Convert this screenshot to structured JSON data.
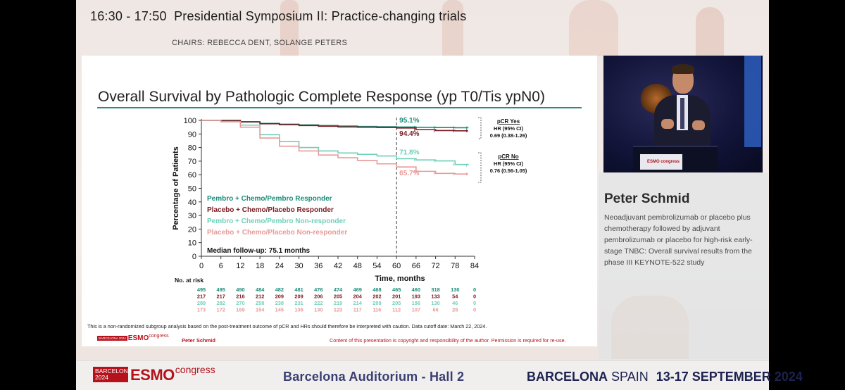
{
  "session": {
    "time_title": "16:30 - 17:50  Presidential Symposium II: Practice-changing trials",
    "chairs": "CHAIRS: REBECCA DENT, SOLANGE PETERS"
  },
  "slide": {
    "title": "Overall Survival by Pathologic Complete Response (yp T0/Tis ypN0)",
    "legend": [
      {
        "label": "Pembro + Chemo/Pembro Responder",
        "color": "#1a8c78"
      },
      {
        "label": "Placebo + Chemo/Placebo Responder",
        "color": "#7a1c22"
      },
      {
        "label": "Pembro + Chemo/Pembro Non-responder",
        "color": "#6fd0b8"
      },
      {
        "label": "Placebo + Chemo/Placebo Non-responder",
        "color": "#e89a98"
      }
    ],
    "followup": "Median follow-up: 75.1 months",
    "annotations": {
      "pcr_yes_pembro": "95.1%",
      "pcr_yes_placebo": "94.4%",
      "pcr_no_pembro": "71.8%",
      "pcr_no_placebo": "65.7%",
      "pcr_yes_title": "pCR Yes",
      "pcr_yes_hr_label": "HR (95% CI)",
      "pcr_yes_hr": "0.69 (0.38-1.26)",
      "pcr_no_title": "pCR No",
      "pcr_no_hr_label": "HR (95% CI)",
      "pcr_no_hr": "0.76 (0.56-1.05)"
    },
    "risk_table_label": "No. at risk",
    "disclaimer": "This is a non-randomized subgroup analysis based on the post-treatment outcome of pCR and HRs should therefore be interpreted with caution. Data cutoff date: March 22, 2024.",
    "footer_logo_box": "BARCELONA 2024",
    "footer_logo_esmo": "ESMO",
    "footer_logo_congress": "congress",
    "footer_author": "Peter Schmid",
    "footer_copy": "Content of this presentation is copyright and responsibility of the author. Permission is required for re-use."
  },
  "chart_data": {
    "type": "line",
    "title": "Overall Survival by Pathologic Complete Response (yp T0/Tis ypN0)",
    "xlabel": "Time, months",
    "ylabel": "Percentage of Patients",
    "xlim": [
      0,
      84
    ],
    "ylim": [
      0,
      100
    ],
    "xticks": [
      0,
      6,
      12,
      18,
      24,
      30,
      36,
      42,
      48,
      54,
      60,
      66,
      72,
      78,
      84
    ],
    "yticks": [
      0,
      10,
      20,
      30,
      40,
      50,
      60,
      70,
      80,
      90,
      100
    ],
    "reference_x": 60,
    "series": [
      {
        "name": "Pembro + Chemo/Pembro Responder",
        "color": "#1a8c78",
        "x": [
          0,
          6,
          12,
          18,
          24,
          30,
          36,
          42,
          48,
          54,
          60,
          66,
          72,
          78,
          82
        ],
        "y": [
          100,
          99.6,
          98.8,
          97.8,
          97.2,
          96.7,
          96.2,
          95.8,
          95.5,
          95.3,
          95.1,
          94.9,
          94.7,
          94.6,
          94.5
        ],
        "at_risk": [
          495,
          495,
          490,
          484,
          482,
          481,
          476,
          474,
          469,
          468,
          465,
          460,
          318,
          130,
          0
        ]
      },
      {
        "name": "Placebo + Chemo/Placebo Responder",
        "color": "#7a1c22",
        "x": [
          0,
          6,
          12,
          18,
          24,
          30,
          36,
          42,
          48,
          54,
          60,
          66,
          72,
          78,
          82
        ],
        "y": [
          100,
          100,
          99.0,
          97.5,
          96.8,
          96.2,
          95.7,
          95.2,
          95.0,
          94.8,
          94.4,
          93.2,
          92.5,
          92.3,
          92.3
        ],
        "at_risk": [
          217,
          217,
          216,
          212,
          209,
          209,
          206,
          205,
          204,
          202,
          201,
          193,
          133,
          54,
          0
        ]
      },
      {
        "name": "Pembro + Chemo/Pembro Non-responder",
        "color": "#6fd0b8",
        "x": [
          0,
          6,
          12,
          18,
          24,
          30,
          36,
          42,
          48,
          54,
          60,
          66,
          72,
          78,
          82
        ],
        "y": [
          100,
          99.0,
          96.5,
          89.5,
          84.5,
          80.0,
          77.5,
          76.0,
          75.0,
          73.8,
          71.8,
          70.9,
          70.2,
          67.5,
          67.0
        ],
        "at_risk": [
          289,
          282,
          270,
          258,
          238,
          231,
          222,
          219,
          214,
          209,
          205,
          196,
          130,
          46,
          0
        ]
      },
      {
        "name": "Placebo + Chemo/Placebo Non-responder",
        "color": "#e89a98",
        "x": [
          0,
          6,
          12,
          18,
          24,
          30,
          36,
          42,
          48,
          54,
          60,
          66,
          72,
          78,
          82
        ],
        "y": [
          100,
          99.0,
          95.0,
          87.0,
          81.0,
          77.5,
          74.5,
          72.5,
          70.5,
          68.0,
          65.7,
          62.5,
          61.0,
          60.5,
          60.5
        ],
        "at_risk": [
          173,
          172,
          169,
          154,
          145,
          136,
          130,
          123,
          117,
          116,
          112,
          107,
          66,
          28,
          0
        ]
      }
    ]
  },
  "video": {
    "podium_logo": "ESMO congress"
  },
  "speaker": {
    "name": "Peter Schmid",
    "description": "Neoadjuvant pembrolizumab or placebo plus chemotherapy followed by adjuvant pembrolizumab or placebo for high-risk early-stage TNBC: Overall survival results from the phase III KEYNOTE-522 study"
  },
  "footer": {
    "logo_box": "BARCELONA 2024",
    "logo_esmo": "ESMO",
    "logo_congress": "congress",
    "venue": "Barcelona Auditorium - Hall 2",
    "city_bold": "BARCELONA",
    "country": "SPAIN",
    "dates": "13-17 SEPTEMBER 2024"
  }
}
